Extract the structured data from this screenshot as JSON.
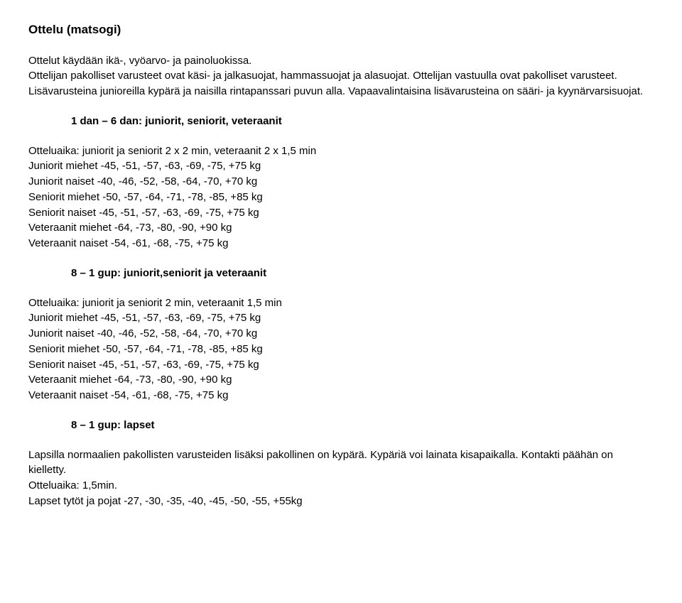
{
  "title": "Ottelu (matsogi)",
  "intro": "Ottelut käydään ikä-, vyöarvo- ja painoluokissa.\nOttelijan pakolliset varusteet ovat käsi- ja jalkasuojat, hammassuojat ja alasuojat. Ottelijan vastuulla ovat pakolliset varusteet.\nLisävarusteina junioreilla kypärä ja naisilla rintapanssari puvun alla. Vapaavalintaisina lisävarusteina on sääri- ja kyynärvarsisuojat.",
  "section1": {
    "heading": "1 dan – 6 dan: juniorit, seniorit, veteraanit",
    "lines": [
      "Otteluaika: juniorit ja seniorit 2 x 2 min, veteraanit 2 x 1,5 min",
      "Juniorit miehet -45, -51, -57, -63, -69, -75, +75 kg",
      "Juniorit naiset -40, -46, -52, -58, -64, -70, +70 kg",
      "Seniorit miehet -50, -57, -64, -71, -78, -85, +85 kg",
      "Seniorit naiset -45, -51, -57, -63, -69, -75, +75 kg",
      "Veteraanit miehet -64, -73, -80, -90, +90 kg",
      "Veteraanit naiset -54, -61, -68, -75, +75 kg"
    ]
  },
  "section2": {
    "heading": "8 – 1 gup: juniorit,seniorit ja veteraanit",
    "lines": [
      "Otteluaika: juniorit ja seniorit 2 min, veteraanit 1,5 min",
      "Juniorit miehet -45, -51, -57, -63, -69, -75, +75 kg",
      "Juniorit naiset -40, -46, -52, -58, -64, -70, +70 kg",
      "Seniorit miehet -50, -57, -64, -71, -78, -85, +85 kg",
      "Seniorit naiset -45, -51, -57, -63, -69, -75, +75 kg",
      "Veteraanit miehet -64, -73, -80, -90, +90 kg",
      "Veteraanit naiset -54, -61, -68, -75, +75 kg"
    ]
  },
  "section3": {
    "heading": "8 – 1 gup: lapset",
    "lines": [
      "Lapsilla normaalien pakollisten varusteiden lisäksi pakollinen on kypärä. Kypäriä voi lainata kisapaikalla. Kontakti päähän on kielletty.",
      "Otteluaika: 1,5min.",
      "Lapset tytöt ja pojat -27, -30, -35, -40, -45, -50, -55, +55kg"
    ]
  }
}
